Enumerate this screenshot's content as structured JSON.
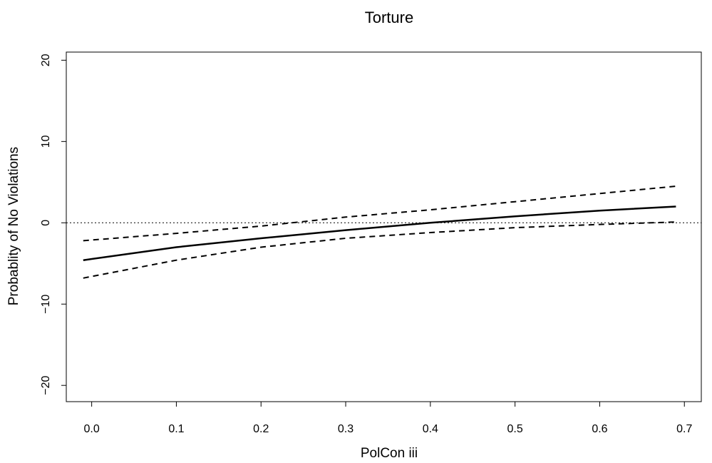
{
  "chart_data": {
    "type": "line",
    "title": "Torture",
    "xlabel": "PolCon iii",
    "ylabel": "Probablity of No Violations",
    "xlim": [
      -0.03,
      0.72
    ],
    "ylim": [
      -22,
      21
    ],
    "x_ticks": [
      0.0,
      0.1,
      0.2,
      0.3,
      0.4,
      0.5,
      0.6,
      0.7
    ],
    "x_tick_labels": [
      "0.0",
      "0.1",
      "0.2",
      "0.3",
      "0.4",
      "0.5",
      "0.6",
      "0.7"
    ],
    "y_ticks": [
      -20,
      -10,
      0,
      10,
      20
    ],
    "y_tick_labels": [
      "−20",
      "−10",
      "0",
      "10",
      "20"
    ],
    "reference_line": {
      "y": 0,
      "style": "dotted"
    },
    "grid": false,
    "series": [
      {
        "style": "solid",
        "x": [
          -0.01,
          0.1,
          0.2,
          0.3,
          0.4,
          0.5,
          0.6,
          0.69
        ],
        "y": [
          -4.6,
          -3.0,
          -1.9,
          -0.9,
          0.0,
          0.8,
          1.5,
          2.0
        ]
      },
      {
        "style": "dashed",
        "x": [
          -0.01,
          0.1,
          0.2,
          0.3,
          0.4,
          0.5,
          0.6,
          0.69
        ],
        "y": [
          -2.2,
          -1.3,
          -0.4,
          0.7,
          1.6,
          2.6,
          3.6,
          4.5
        ]
      },
      {
        "style": "dashed",
        "x": [
          -0.01,
          0.1,
          0.2,
          0.3,
          0.4,
          0.5,
          0.6,
          0.69
        ],
        "y": [
          -6.8,
          -4.6,
          -3.0,
          -1.9,
          -1.2,
          -0.6,
          -0.2,
          0.1
        ]
      }
    ]
  }
}
